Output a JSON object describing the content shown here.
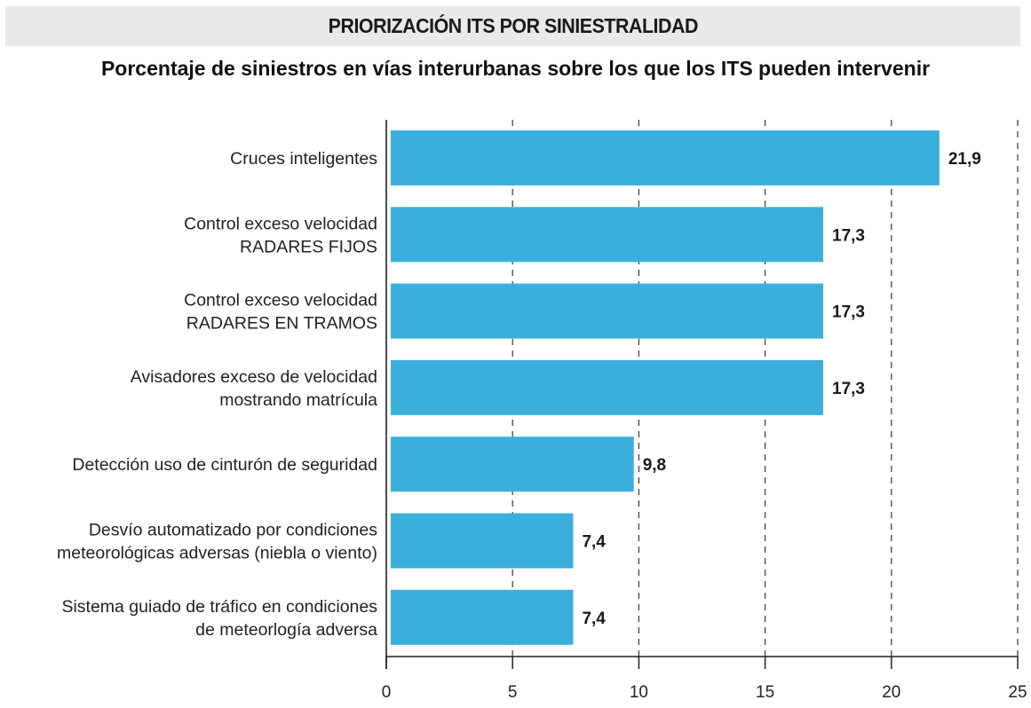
{
  "header": {
    "banner_title": "PRIORIZACIÓN ITS POR SINIESTRALIDAD",
    "subtitle": "Porcentaje de siniestros en vías interurbanas sobre los que los ITS pueden intervenir"
  },
  "chart_data": {
    "type": "bar",
    "orientation": "horizontal",
    "title": "PRIORIZACIÓN ITS POR SINIESTRALIDAD",
    "subtitle": "Porcentaje de siniestros en vías interurbanas sobre los que los ITS pueden intervenir",
    "xlabel": "",
    "ylabel": "",
    "categories": [
      [
        "Cruces inteligentes"
      ],
      [
        "Control exceso velocidad",
        "RADARES FIJOS"
      ],
      [
        "Control exceso velocidad",
        "RADARES EN TRAMOS"
      ],
      [
        "Avisadores exceso de velocidad",
        "mostrando matrícula"
      ],
      [
        "Detección uso de cinturón de seguridad"
      ],
      [
        "Desvío automatizado por condiciones",
        "meteorológicas adversas (niebla o viento)"
      ],
      [
        "Sistema guiado de tráfico en condiciones",
        "de meteorlogía adversa"
      ]
    ],
    "values": [
      21.9,
      17.3,
      17.3,
      17.3,
      9.8,
      7.4,
      7.4
    ],
    "value_labels": [
      "21,9",
      "17,3",
      "17,3",
      "17,3",
      "9,8",
      "7,4",
      "7,4"
    ],
    "xlim": [
      0,
      25
    ],
    "xticks": [
      0,
      5,
      10,
      15,
      20,
      25
    ],
    "xtick_labels": [
      "0",
      "5",
      "10",
      "15",
      "20",
      "25"
    ],
    "grid": "vertical dashed",
    "legend": "none",
    "bar_color": "#3aafdc"
  }
}
